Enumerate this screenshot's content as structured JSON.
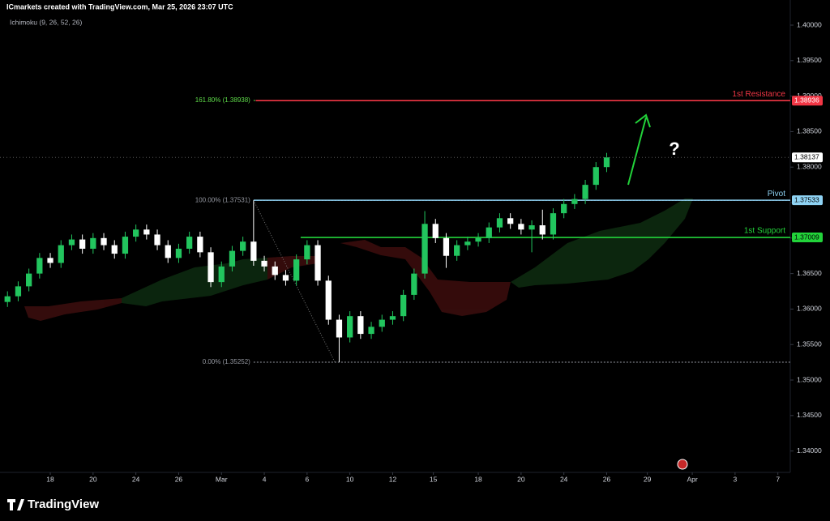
{
  "chart_data": {
    "type": "candlestick",
    "title": "ICmarkets created with TradingView.com, Mar 25, 2026 23:07 UTC",
    "indicator": "Ichimoku (9, 26, 52, 26)",
    "brand": "TradingView",
    "annotation": "?",
    "up_color": "#22c55e",
    "down_color": "#ffffff",
    "x": [
      -2,
      -1.5,
      -1,
      -0.5,
      0,
      0.5,
      1,
      1.5,
      2,
      2.5,
      3,
      3.5,
      4,
      4.5,
      5,
      5.5,
      6,
      6.5,
      7,
      7.5,
      8,
      8.5,
      9,
      9.5,
      10,
      10.5,
      11,
      11.5,
      12,
      12.5,
      13,
      13.5,
      14,
      14.5,
      15,
      15.5,
      16,
      16.5,
      17,
      17.5,
      18,
      18.5,
      19,
      19.5,
      20,
      20.5,
      21,
      21.5,
      22,
      22.5,
      23,
      23.5,
      24,
      24.5,
      25,
      25.5,
      26
    ],
    "open": [
      1.361,
      1.3618,
      1.3632,
      1.365,
      1.3672,
      1.3665,
      1.369,
      1.3698,
      1.3685,
      1.37,
      1.369,
      1.3678,
      1.3702,
      1.3712,
      1.3705,
      1.369,
      1.3672,
      1.3685,
      1.3702,
      1.368,
      1.3638,
      1.366,
      1.3682,
      1.3695,
      1.3668,
      1.366,
      1.3648,
      1.364,
      1.367,
      1.369,
      1.364,
      1.3585,
      1.356,
      1.359,
      1.3565,
      1.3575,
      1.3585,
      1.359,
      1.362,
      1.365,
      1.372,
      1.37,
      1.3675,
      1.369,
      1.3695,
      1.37,
      1.3715,
      1.3728,
      1.372,
      1.3712,
      1.3718,
      1.3705,
      1.3735,
      1.3748,
      1.3755,
      1.3775,
      1.38
    ],
    "high": [
      1.3625,
      1.3639,
      1.3657,
      1.3679,
      1.3679,
      1.3697,
      1.3705,
      1.3705,
      1.3707,
      1.3707,
      1.3697,
      1.3709,
      1.3719,
      1.3719,
      1.3712,
      1.3697,
      1.3692,
      1.3709,
      1.3709,
      1.3687,
      1.3667,
      1.3689,
      1.3702,
      1.37531,
      1.3675,
      1.3667,
      1.3655,
      1.3677,
      1.3697,
      1.3697,
      1.3647,
      1.3592,
      1.3597,
      1.3597,
      1.3582,
      1.3592,
      1.3597,
      1.3627,
      1.3657,
      1.3738,
      1.3727,
      1.3707,
      1.3697,
      1.3702,
      1.3707,
      1.3722,
      1.3735,
      1.3735,
      1.3727,
      1.3725,
      1.374,
      1.3742,
      1.3755,
      1.3762,
      1.3782,
      1.3807,
      1.382
    ],
    "low": [
      1.3603,
      1.3611,
      1.3625,
      1.3643,
      1.3658,
      1.3658,
      1.3683,
      1.3678,
      1.3678,
      1.3683,
      1.3671,
      1.3671,
      1.3695,
      1.3698,
      1.3683,
      1.3665,
      1.3665,
      1.3678,
      1.3673,
      1.3631,
      1.3631,
      1.3653,
      1.3675,
      1.3661,
      1.3653,
      1.3641,
      1.3633,
      1.3633,
      1.3663,
      1.3633,
      1.3578,
      1.35252,
      1.3553,
      1.3558,
      1.3558,
      1.3568,
      1.3578,
      1.3583,
      1.3613,
      1.3643,
      1.3693,
      1.3658,
      1.3668,
      1.3683,
      1.3688,
      1.3693,
      1.3708,
      1.3713,
      1.3705,
      1.368,
      1.3698,
      1.3698,
      1.3728,
      1.3741,
      1.3748,
      1.3768,
      1.3793
    ],
    "close": [
      1.3618,
      1.3632,
      1.365,
      1.3672,
      1.3665,
      1.369,
      1.3698,
      1.3685,
      1.37,
      1.369,
      1.3678,
      1.3702,
      1.3712,
      1.3705,
      1.369,
      1.3672,
      1.3685,
      1.3702,
      1.368,
      1.3638,
      1.366,
      1.3682,
      1.3695,
      1.3668,
      1.366,
      1.3648,
      1.364,
      1.367,
      1.369,
      1.364,
      1.3585,
      1.356,
      1.359,
      1.3565,
      1.3575,
      1.3585,
      1.359,
      1.362,
      1.365,
      1.372,
      1.37,
      1.3675,
      1.369,
      1.3695,
      1.37,
      1.3715,
      1.3728,
      1.372,
      1.3712,
      1.3718,
      1.3705,
      1.3735,
      1.3748,
      1.3755,
      1.3775,
      1.38,
      1.38137
    ],
    "last_price": 1.38137,
    "xlim": [
      -2.35,
      34.58
    ],
    "xticks": [
      {
        "value": 0,
        "label": "18"
      },
      {
        "value": 2,
        "label": "20"
      },
      {
        "value": 4,
        "label": "24"
      },
      {
        "value": 6,
        "label": "26"
      },
      {
        "value": 8,
        "label": "Mar"
      },
      {
        "value": 10,
        "label": "4"
      },
      {
        "value": 12,
        "label": "6"
      },
      {
        "value": 14,
        "label": "10"
      },
      {
        "value": 16,
        "label": "12"
      },
      {
        "value": 17.9,
        "label": "15"
      },
      {
        "value": 20,
        "label": "18"
      },
      {
        "value": 22,
        "label": "20"
      },
      {
        "value": 24,
        "label": "24"
      },
      {
        "value": 26,
        "label": "26"
      },
      {
        "value": 27.9,
        "label": "29"
      },
      {
        "value": 30,
        "label": "Apr"
      },
      {
        "value": 32,
        "label": "3"
      },
      {
        "value": 34,
        "label": "7"
      }
    ],
    "ylim": [
      1.33699,
      1.40354
    ],
    "yticks": [
      {
        "value": 1.34,
        "label": "1.34000"
      },
      {
        "value": 1.345,
        "label": "1.34500"
      },
      {
        "value": 1.35,
        "label": "1.35000"
      },
      {
        "value": 1.355,
        "label": "1.35500"
      },
      {
        "value": 1.36,
        "label": "1.36000"
      },
      {
        "value": 1.365,
        "label": "1.36500"
      },
      {
        "value": 1.37,
        "label": "1.37000"
      },
      {
        "value": 1.375,
        "label": "1.37500"
      },
      {
        "value": 1.38,
        "label": "1.38000"
      },
      {
        "value": 1.385,
        "label": "1.38500"
      },
      {
        "value": 1.39,
        "label": "1.39000"
      },
      {
        "value": 1.395,
        "label": "1.39500"
      },
      {
        "value": 1.4,
        "label": "1.40000"
      }
    ],
    "levels": [
      {
        "name": "1st Resistance",
        "value": 1.38936,
        "color": "#f23645",
        "x_start": 9.6
      },
      {
        "name": "Pivot",
        "value": 1.37533,
        "color": "#8fd3f4",
        "x_start": 9.5
      },
      {
        "name": "1st Support",
        "value": 1.37009,
        "color": "#22d33a",
        "x_start": 11.7
      }
    ],
    "fib": [
      {
        "value": 1.38938,
        "label": "161.80% (1.38938)",
        "color": "#5fdc4a"
      },
      {
        "value": 1.37531,
        "label": "100.00% (1.37531)",
        "color": "#9598a1"
      },
      {
        "value": 1.35252,
        "label": "0.00% (1.35252)",
        "color": "#9598a1"
      }
    ],
    "fib_x": [
      9.5,
      13.3
    ]
  }
}
